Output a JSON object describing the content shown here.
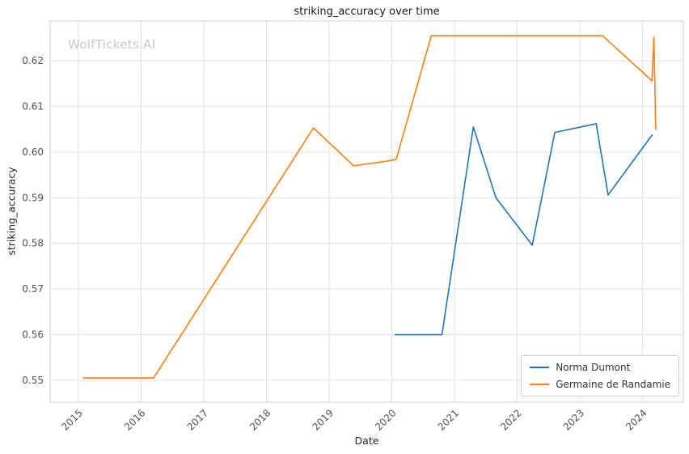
{
  "chart_data": {
    "type": "line",
    "title": "striking_accuracy over time",
    "xlabel": "Date",
    "ylabel": "striking_accuracy",
    "watermark": "WolfTickets.AI",
    "xlim": [
      2014.55,
      2024.65
    ],
    "ylim": [
      0.5452,
      0.6287
    ],
    "grid": true,
    "legend_position": "lower right",
    "colors": {
      "grid": "#e2e2e2",
      "frame": "#cfcfcf",
      "tick_text": "#525252"
    },
    "x_ticks": [
      {
        "value": 2015,
        "label": "2015"
      },
      {
        "value": 2016,
        "label": "2016"
      },
      {
        "value": 2017,
        "label": "2017"
      },
      {
        "value": 2018,
        "label": "2018"
      },
      {
        "value": 2019,
        "label": "2019"
      },
      {
        "value": 2020,
        "label": "2020"
      },
      {
        "value": 2021,
        "label": "2021"
      },
      {
        "value": 2022,
        "label": "2022"
      },
      {
        "value": 2023,
        "label": "2023"
      },
      {
        "value": 2024,
        "label": "2024"
      }
    ],
    "y_ticks": [
      {
        "value": 0.55,
        "label": "0.55"
      },
      {
        "value": 0.56,
        "label": "0.56"
      },
      {
        "value": 0.57,
        "label": "0.57"
      },
      {
        "value": 0.58,
        "label": "0.58"
      },
      {
        "value": 0.59,
        "label": "0.59"
      },
      {
        "value": 0.6,
        "label": "0.60"
      },
      {
        "value": 0.61,
        "label": "0.61"
      },
      {
        "value": 0.62,
        "label": "0.62"
      }
    ],
    "series": [
      {
        "name": "Norma Dumont",
        "color": "#1f77b4",
        "x": [
          2020.05,
          2020.8,
          2021.3,
          2021.66,
          2022.24,
          2022.6,
          2023.26,
          2023.45,
          2024.15
        ],
        "y": [
          0.56,
          0.56,
          0.6055,
          0.59,
          0.5796,
          0.6043,
          0.6062,
          0.5906,
          0.6037
        ]
      },
      {
        "name": "Germaine de Randamie",
        "color": "#ff7f0e",
        "x": [
          2015.08,
          2016.2,
          2018.75,
          2019.39,
          2019.92,
          2020.07,
          2020.63,
          2023.36,
          2024.15,
          2024.18,
          2024.21
        ],
        "y": [
          0.5505,
          0.5505,
          0.6053,
          0.597,
          0.598,
          0.5984,
          0.6255,
          0.6255,
          0.6156,
          0.6252,
          0.605
        ]
      }
    ]
  }
}
